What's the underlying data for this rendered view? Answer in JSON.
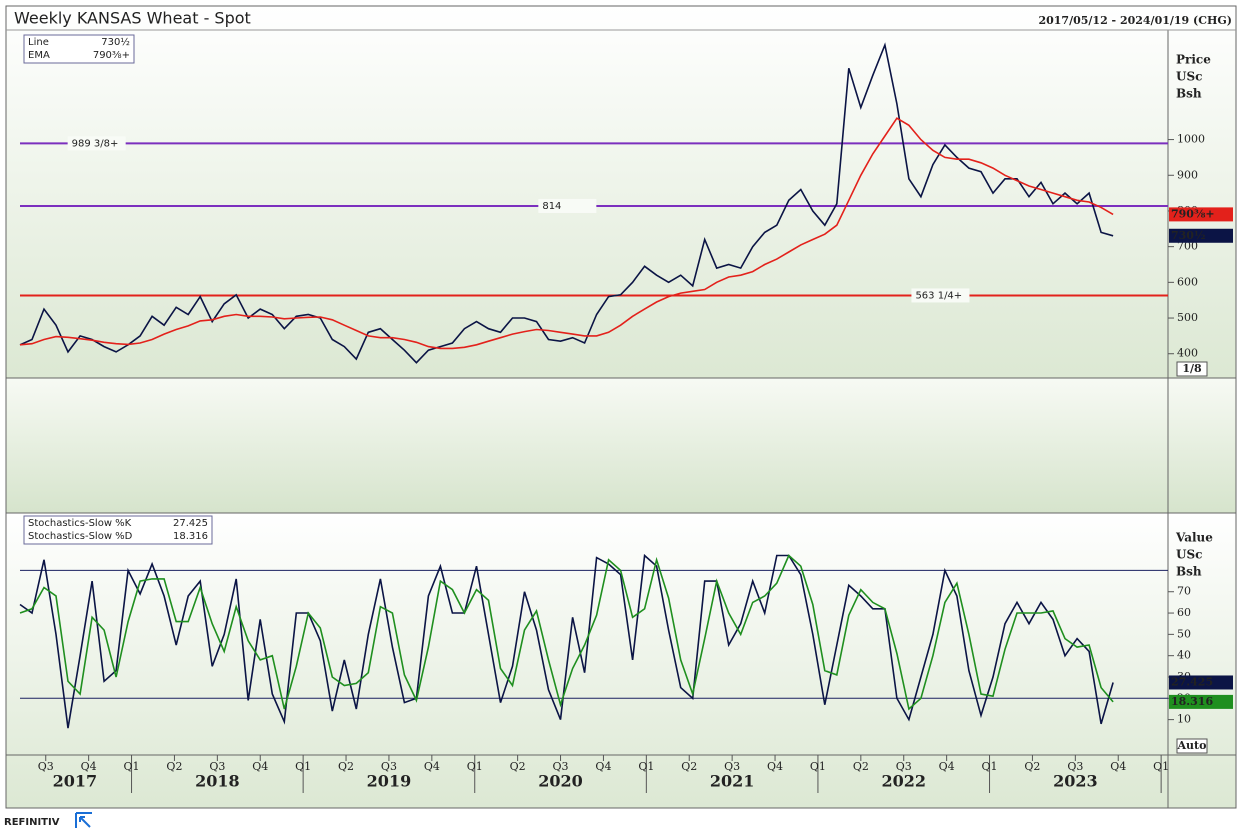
{
  "chart_data": [
    {
      "type": "line",
      "title": "Weekly KANSAS Wheat - Spot",
      "subtitle": "2017/05/12 - 2024/01/19 (CHG)",
      "ylabel": [
        "Price",
        "USc",
        "Bsh"
      ],
      "x": [
        2017.35,
        2017.42,
        2017.49,
        2017.56,
        2017.63,
        2017.7,
        2017.77,
        2017.84,
        2017.91,
        2017.98,
        2018.05,
        2018.12,
        2018.19,
        2018.26,
        2018.33,
        2018.4,
        2018.47,
        2018.54,
        2018.61,
        2018.68,
        2018.75,
        2018.82,
        2018.89,
        2018.96,
        2019.03,
        2019.1,
        2019.17,
        2019.24,
        2019.31,
        2019.38,
        2019.45,
        2019.52,
        2019.59,
        2019.66,
        2019.73,
        2019.8,
        2019.87,
        2019.94,
        2020.01,
        2020.08,
        2020.15,
        2020.22,
        2020.29,
        2020.36,
        2020.43,
        2020.5,
        2020.57,
        2020.64,
        2020.71,
        2020.78,
        2020.85,
        2020.92,
        2020.99,
        2021.06,
        2021.13,
        2021.2,
        2021.27,
        2021.34,
        2021.41,
        2021.48,
        2021.55,
        2021.62,
        2021.69,
        2021.76,
        2021.83,
        2021.9,
        2021.97,
        2022.04,
        2022.11,
        2022.18,
        2022.25,
        2022.32,
        2022.39,
        2022.46,
        2022.53,
        2022.6,
        2022.67,
        2022.74,
        2022.81,
        2022.88,
        2022.95,
        2023.02,
        2023.09,
        2023.16,
        2023.23,
        2023.3,
        2023.37,
        2023.44,
        2023.51,
        2023.58,
        2023.65,
        2023.72
      ],
      "xlim": [
        2017.35,
        2024.04
      ],
      "ylim": [
        332,
        1307
      ],
      "yticks": [
        400,
        500,
        600,
        700,
        800,
        900,
        1000
      ],
      "series": [
        {
          "name": "Line",
          "color": "#0b1445",
          "last_label": "730½",
          "values": [
            425,
            440,
            525,
            480,
            405,
            450,
            440,
            420,
            405,
            425,
            450,
            505,
            480,
            530,
            510,
            560,
            490,
            540,
            565,
            500,
            525,
            510,
            470,
            505,
            510,
            500,
            440,
            420,
            385,
            460,
            470,
            440,
            410,
            375,
            410,
            420,
            430,
            470,
            490,
            470,
            460,
            500,
            500,
            490,
            440,
            435,
            445,
            430,
            510,
            560,
            565,
            600,
            645,
            620,
            600,
            620,
            590,
            720,
            640,
            650,
            640,
            700,
            740,
            760,
            830,
            860,
            800,
            760,
            820,
            1200,
            1090,
            1180,
            1265,
            1100,
            890,
            840,
            930,
            985,
            950,
            920,
            910,
            850,
            890,
            890,
            840,
            880,
            820,
            850,
            820,
            850,
            740,
            730.5
          ]
        },
        {
          "name": "EMA",
          "color": "#e3211b",
          "last_label": "790⅜+",
          "values": [
            425,
            428,
            440,
            448,
            446,
            442,
            438,
            432,
            428,
            426,
            430,
            440,
            455,
            468,
            478,
            492,
            495,
            505,
            510,
            505,
            505,
            503,
            498,
            500,
            502,
            503,
            495,
            480,
            465,
            450,
            445,
            445,
            440,
            432,
            420,
            415,
            415,
            418,
            425,
            435,
            445,
            455,
            462,
            468,
            465,
            460,
            455,
            450,
            450,
            460,
            480,
            505,
            525,
            545,
            560,
            570,
            575,
            580,
            600,
            615,
            620,
            630,
            650,
            665,
            685,
            705,
            720,
            735,
            760,
            830,
            900,
            960,
            1010,
            1060,
            1040,
            1000,
            970,
            950,
            945,
            945,
            935,
            920,
            900,
            885,
            870,
            860,
            850,
            840,
            830,
            825,
            810,
            790.375
          ]
        }
      ],
      "hlines": [
        {
          "value": 989.375,
          "label": "989 3/8+",
          "color": "#7b2fbe"
        },
        {
          "value": 814,
          "color": "#7b2fbe"
        },
        {
          "value": 563.25,
          "label": "563 1/4+",
          "color": "#e3211b"
        }
      ],
      "scale_label": "1/8"
    },
    {
      "type": "line",
      "ylabel": [
        "Value",
        "USc",
        "Bsh"
      ],
      "x": [
        2017.35,
        2017.42,
        2017.49,
        2017.56,
        2017.63,
        2017.7,
        2017.77,
        2017.84,
        2017.91,
        2017.98,
        2018.05,
        2018.12,
        2018.19,
        2018.26,
        2018.33,
        2018.4,
        2018.47,
        2018.54,
        2018.61,
        2018.68,
        2018.75,
        2018.82,
        2018.89,
        2018.96,
        2019.03,
        2019.1,
        2019.17,
        2019.24,
        2019.31,
        2019.38,
        2019.45,
        2019.52,
        2019.59,
        2019.66,
        2019.73,
        2019.8,
        2019.87,
        2019.94,
        2020.01,
        2020.08,
        2020.15,
        2020.22,
        2020.29,
        2020.36,
        2020.43,
        2020.5,
        2020.57,
        2020.64,
        2020.71,
        2020.78,
        2020.85,
        2020.92,
        2020.99,
        2021.06,
        2021.13,
        2021.2,
        2021.27,
        2021.34,
        2021.41,
        2021.48,
        2021.55,
        2021.62,
        2021.69,
        2021.76,
        2021.83,
        2021.9,
        2021.97,
        2022.04,
        2022.11,
        2022.18,
        2022.25,
        2022.32,
        2022.39,
        2022.46,
        2022.53,
        2022.6,
        2022.67,
        2022.74,
        2022.81,
        2022.88,
        2022.95,
        2023.02,
        2023.09,
        2023.16,
        2023.23,
        2023.3,
        2023.37,
        2023.44,
        2023.51,
        2023.58,
        2023.65,
        2023.72
      ],
      "xlim": [
        2017.35,
        2024.04
      ],
      "ylim": [
        -6.6,
        106
      ],
      "yticks": [
        10,
        20,
        30,
        40,
        50,
        60,
        70
      ],
      "levels": [
        80,
        20
      ],
      "level_color": "#1a2060",
      "series": [
        {
          "name": "Stochastics-Slow %K",
          "color": "#0b1445",
          "values": [
            64,
            60,
            85,
            50,
            6,
            40,
            75,
            28,
            33,
            80,
            69,
            83,
            68,
            45,
            68,
            75,
            35,
            50,
            76,
            19,
            57,
            22,
            9,
            60,
            60,
            47,
            14,
            38,
            15,
            50,
            76,
            44,
            18,
            20,
            68,
            82,
            60,
            60,
            82,
            50,
            18,
            35,
            70,
            52,
            24,
            10,
            58,
            32,
            86,
            83,
            78,
            38,
            87,
            82,
            52,
            25,
            20,
            75,
            75,
            45,
            55,
            75,
            60,
            87,
            87,
            78,
            50,
            17,
            45,
            73,
            68,
            62,
            62,
            20,
            10,
            30,
            50,
            80,
            68,
            33,
            12,
            30,
            55,
            65,
            55,
            65,
            57,
            40,
            48,
            42,
            8,
            27.425
          ]
        },
        {
          "name": "Stochastics-Slow %D",
          "color": "#1f8f1f",
          "values": [
            60,
            62,
            72,
            68,
            28,
            22,
            58,
            52,
            30,
            56,
            75,
            76,
            76,
            56,
            56,
            72,
            55,
            42,
            63,
            47,
            38,
            40,
            15,
            35,
            60,
            53,
            30,
            26,
            27,
            32,
            63,
            60,
            31,
            19,
            44,
            75,
            71,
            60,
            71,
            66,
            34,
            26,
            52,
            61,
            38,
            17,
            34,
            45,
            59,
            85,
            80,
            58,
            62,
            85,
            67,
            38,
            22,
            48,
            75,
            60,
            50,
            65,
            68,
            74,
            87,
            82,
            64,
            33,
            31,
            59,
            71,
            65,
            62,
            41,
            15,
            20,
            40,
            65,
            74,
            50,
            22,
            21,
            43,
            60,
            60,
            60,
            61,
            48,
            44,
            45,
            25,
            18.316
          ]
        }
      ],
      "xticks": [
        {
          "value": 2017.5,
          "label": "Q3"
        },
        {
          "value": 2017.75,
          "label": "Q4"
        },
        {
          "value": 2018,
          "label": "Q1"
        },
        {
          "value": 2018.25,
          "label": "Q2"
        },
        {
          "value": 2018.5,
          "label": "Q3"
        },
        {
          "value": 2018.75,
          "label": "Q4"
        },
        {
          "value": 2019,
          "label": "Q1"
        },
        {
          "value": 2019.25,
          "label": "Q2"
        },
        {
          "value": 2019.5,
          "label": "Q3"
        },
        {
          "value": 2019.75,
          "label": "Q4"
        },
        {
          "value": 2020,
          "label": "Q1"
        },
        {
          "value": 2020.25,
          "label": "Q2"
        },
        {
          "value": 2020.5,
          "label": "Q3"
        },
        {
          "value": 2020.75,
          "label": "Q4"
        },
        {
          "value": 2021,
          "label": "Q1"
        },
        {
          "value": 2021.25,
          "label": "Q2"
        },
        {
          "value": 2021.5,
          "label": "Q3"
        },
        {
          "value": 2021.75,
          "label": "Q4"
        },
        {
          "value": 2022,
          "label": "Q1"
        },
        {
          "value": 2022.25,
          "label": "Q2"
        },
        {
          "value": 2022.5,
          "label": "Q3"
        },
        {
          "value": 2022.75,
          "label": "Q4"
        },
        {
          "value": 2023,
          "label": "Q1"
        },
        {
          "value": 2023.25,
          "label": "Q2"
        },
        {
          "value": 2023.5,
          "label": "Q3"
        },
        {
          "value": 2023.75,
          "label": "Q4"
        },
        {
          "value": 2024,
          "label": "Q1"
        }
      ],
      "year_labels": [
        {
          "value": 2017.67,
          "label": "2017"
        },
        {
          "value": 2018.5,
          "label": "2018"
        },
        {
          "value": 2019.5,
          "label": "2019"
        },
        {
          "value": 2020.5,
          "label": "2020"
        },
        {
          "value": 2021.5,
          "label": "2021"
        },
        {
          "value": 2022.5,
          "label": "2022"
        },
        {
          "value": 2023.5,
          "label": "2023"
        }
      ],
      "scale_mode": "Auto"
    }
  ],
  "footer": {
    "logo": "REFINITIV"
  }
}
